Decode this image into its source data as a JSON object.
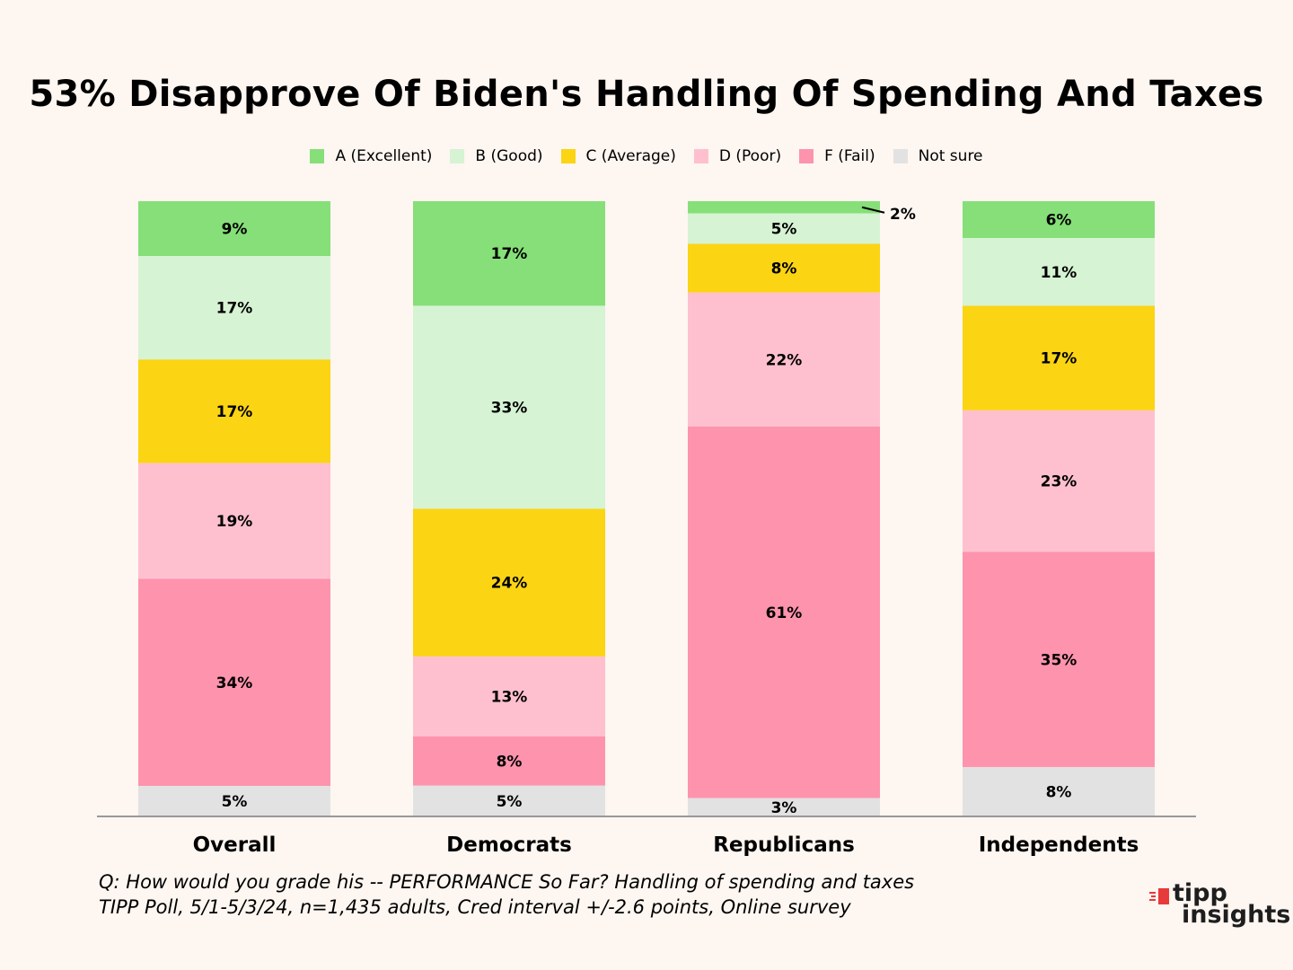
{
  "chart_data": {
    "type": "bar",
    "stacked": true,
    "title": "53% Disapprove Of Biden's Handling Of Spending And Taxes",
    "categories": [
      "Overall",
      "Democrats",
      "Republicans",
      "Independents"
    ],
    "series": [
      {
        "name": "A (Excellent)",
        "color": "#86df78",
        "values": [
          9,
          17,
          2,
          6
        ]
      },
      {
        "name": "B (Good)",
        "color": "#d6f3d4",
        "values": [
          17,
          33,
          5,
          11
        ]
      },
      {
        "name": "C (Average)",
        "color": "#fbd414",
        "values": [
          17,
          24,
          8,
          17
        ]
      },
      {
        "name": "D (Poor)",
        "color": "#fec0cf",
        "values": [
          19,
          13,
          22,
          23
        ]
      },
      {
        "name": "F (Fail)",
        "color": "#fe93ad",
        "values": [
          34,
          8,
          61,
          35
        ]
      },
      {
        "name": "Not sure",
        "color": "#e2e2e2",
        "values": [
          5,
          5,
          3,
          8
        ]
      }
    ],
    "data_labels": [
      [
        "9%",
        "17%",
        "17%",
        "19%",
        "34%",
        "5%"
      ],
      [
        "17%",
        "33%",
        "24%",
        "13%",
        "8%",
        "5%"
      ],
      [
        "2%",
        "5%",
        "8%",
        "22%",
        "61%",
        "3%"
      ],
      [
        "6%",
        "11%",
        "17%",
        "23%",
        "35%",
        "8%"
      ]
    ],
    "xlabel": "",
    "ylabel": "",
    "ylim": [
      0,
      100
    ],
    "legend_position": "top-center",
    "grid": false
  },
  "footnote": {
    "line1": "Q:  How would you grade his -- PERFORMANCE So Far? Handling  of spending and taxes",
    "line2": "TIPP Poll, 5/1-5/3/24, n=1,435 adults, Cred interval +/-2.6 points, Online survey"
  },
  "logo": {
    "word1": "tipp",
    "word2": "insights",
    "accent": "#e83a3a"
  },
  "colors": {
    "background": "#fdf6f1",
    "axis": "#999999"
  }
}
